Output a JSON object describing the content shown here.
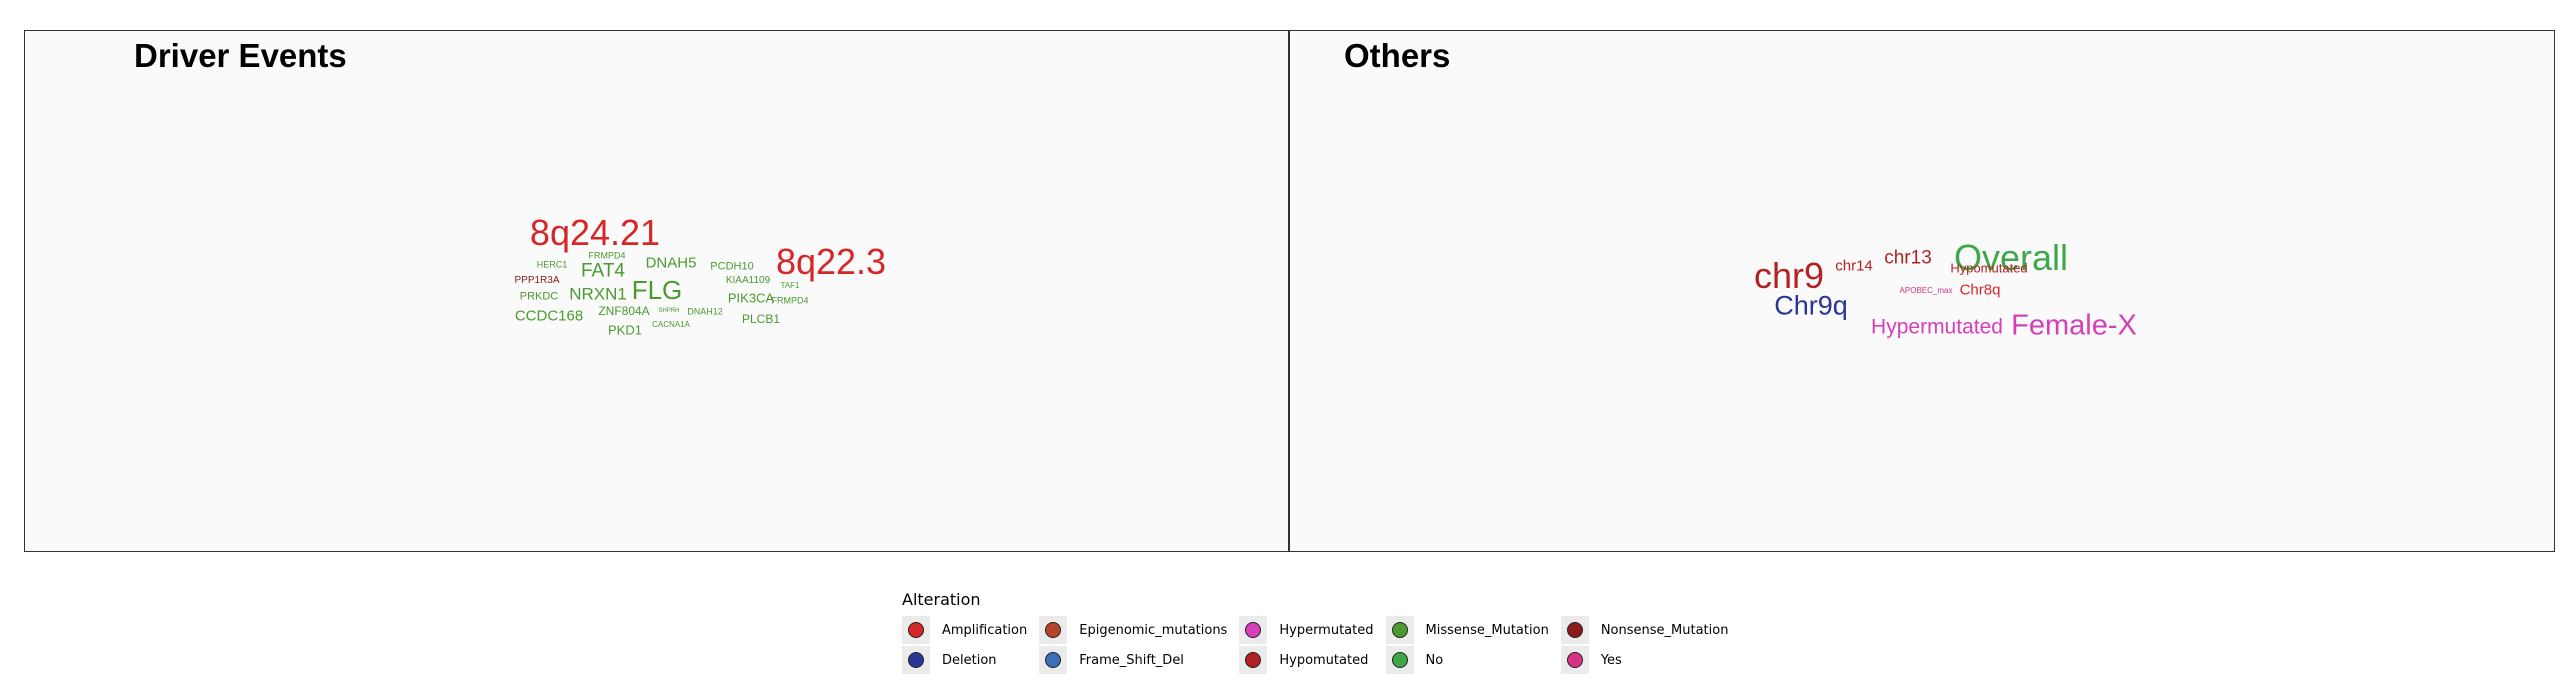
{
  "chart_data": [
    {
      "type": "wordcloud",
      "title": "Driver Events",
      "words": [
        {
          "text": "8q24.21",
          "category": "Amplification",
          "weight": 36
        },
        {
          "text": "8q22.3",
          "category": "Amplification",
          "weight": 36
        },
        {
          "text": "FLG",
          "category": "Missense_Mutation",
          "weight": 26
        },
        {
          "text": "FAT4",
          "category": "Missense_Mutation",
          "weight": 19
        },
        {
          "text": "NRXN1",
          "category": "Missense_Mutation",
          "weight": 17
        },
        {
          "text": "DNAH5",
          "category": "Missense_Mutation",
          "weight": 15
        },
        {
          "text": "CCDC168",
          "category": "Missense_Mutation",
          "weight": 15
        },
        {
          "text": "PIK3CA",
          "category": "Missense_Mutation",
          "weight": 13
        },
        {
          "text": "PKD1",
          "category": "Missense_Mutation",
          "weight": 13
        },
        {
          "text": "ZNF804A",
          "category": "Missense_Mutation",
          "weight": 12
        },
        {
          "text": "PLCB1",
          "category": "Missense_Mutation",
          "weight": 12
        },
        {
          "text": "PCDH10",
          "category": "Missense_Mutation",
          "weight": 11
        },
        {
          "text": "PRKDC",
          "category": "Missense_Mutation",
          "weight": 11
        },
        {
          "text": "KIAA1109",
          "category": "Missense_Mutation",
          "weight": 10
        },
        {
          "text": "PPP1R3A",
          "category": "Nonsense_Mutation",
          "weight": 10
        },
        {
          "text": "HERC1",
          "category": "Missense_Mutation",
          "weight": 9
        },
        {
          "text": "FRMPD4",
          "category": "Missense_Mutation",
          "weight": 9
        },
        {
          "text": "FRMPD4",
          "category": "Missense_Mutation",
          "weight": 9
        },
        {
          "text": "DNAH12",
          "category": "Missense_Mutation",
          "weight": 9
        },
        {
          "text": "TAF1",
          "category": "Missense_Mutation",
          "weight": 8
        },
        {
          "text": "CACNA1A",
          "category": "Missense_Mutation",
          "weight": 8
        },
        {
          "text": "SHPRH",
          "category": "Missense_Mutation",
          "weight": 6
        }
      ]
    },
    {
      "type": "wordcloud",
      "title": "Others",
      "words": [
        {
          "text": "Overall",
          "category": "No",
          "weight": 36
        },
        {
          "text": "chr9",
          "category": "Hypomutated",
          "weight": 36
        },
        {
          "text": "Female-X",
          "category": "Hypermutated",
          "weight": 29
        },
        {
          "text": "Chr9q",
          "category": "Deletion",
          "weight": 27
        },
        {
          "text": "Hypermutated",
          "category": "Hypermutated",
          "weight": 21
        },
        {
          "text": "chr13",
          "category": "Hypomutated",
          "weight": 19
        },
        {
          "text": "chr14",
          "category": "Hypomutated",
          "weight": 15
        },
        {
          "text": "Chr8q",
          "category": "Amplification",
          "weight": 15
        },
        {
          "text": "Hypomutated",
          "category": "Hypomutated",
          "weight": 13
        },
        {
          "text": "APOBEC_max",
          "category": "Yes",
          "weight": 8
        }
      ]
    }
  ],
  "legend": {
    "title": "Alteration",
    "items": [
      {
        "label": "Amplification",
        "color": "#d62728"
      },
      {
        "label": "Deletion",
        "color": "#283593"
      },
      {
        "label": "Epigenomic_mutations",
        "color": "#b8442c"
      },
      {
        "label": "Frame_Shift_Del",
        "color": "#3b6fb6"
      },
      {
        "label": "Hypermutated",
        "color": "#d63fb8"
      },
      {
        "label": "Hypomutated",
        "color": "#b22222"
      },
      {
        "label": "Missense_Mutation",
        "color": "#4a9a2f"
      },
      {
        "label": "No",
        "color": "#3fa64a"
      },
      {
        "label": "Nonsense_Mutation",
        "color": "#8b1a1a"
      },
      {
        "label": "Yes",
        "color": "#d63384"
      }
    ]
  }
}
